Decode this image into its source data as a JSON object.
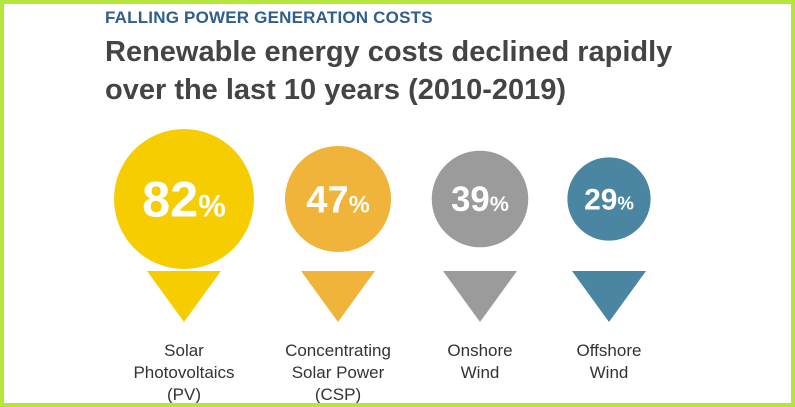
{
  "header": {
    "kicker": "FALLING POWER GENERATION COSTS",
    "title_line1": "Renewable energy costs declined rapidly",
    "title_line2": "over the last 10 years (2010-2019)"
  },
  "chart_data": {
    "type": "bar",
    "title": "Renewable energy costs declined rapidly over the last 10 years (2010-2019)",
    "subtitle": "FALLING POWER GENERATION COSTS",
    "unit": "%",
    "categories": [
      "Solar Photovoltaics (PV)",
      "Concentrating Solar Power (CSP)",
      "Onshore Wind",
      "Offshore Wind"
    ],
    "values": [
      82,
      47,
      39,
      29
    ],
    "colors": [
      "#f6cd00",
      "#f1b43a",
      "#9b9b9b",
      "#4a86a1"
    ],
    "items": [
      {
        "value": 82,
        "number": "82",
        "unit": "%",
        "label_lines": [
          "Solar",
          "Photovoltaics",
          "(PV)"
        ]
      },
      {
        "value": 47,
        "number": "47",
        "unit": "%",
        "label_lines": [
          "Concentrating",
          "Solar Power",
          "(CSP)"
        ]
      },
      {
        "value": 39,
        "number": "39",
        "unit": "%",
        "label_lines": [
          "Onshore",
          "Wind"
        ]
      },
      {
        "value": 29,
        "number": "29",
        "unit": "%",
        "label_lines": [
          "Offshore",
          "Wind"
        ]
      }
    ]
  }
}
